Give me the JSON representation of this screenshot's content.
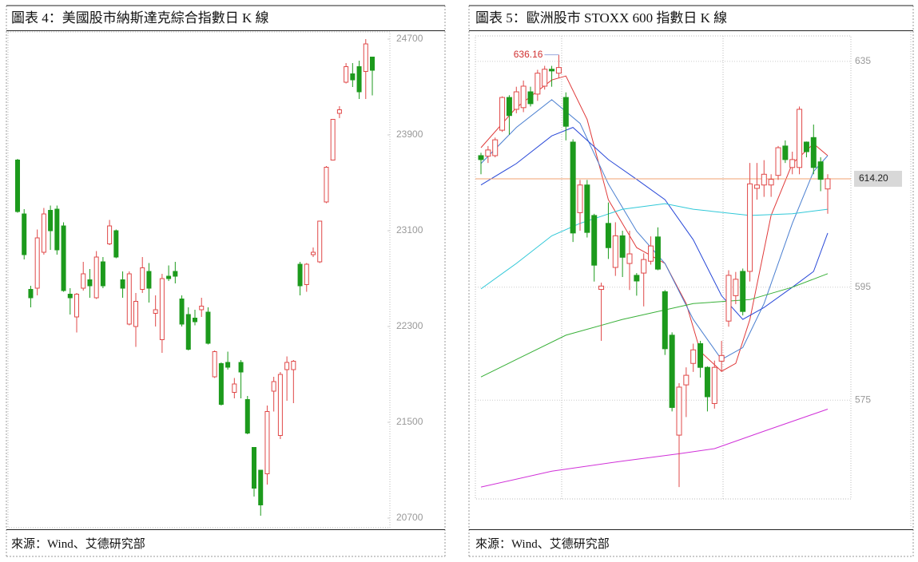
{
  "chart_data": [
    {
      "type": "candlestick",
      "title": "圖表 4：美國股市納斯達克綜合指數日 K 線",
      "source": "來源：Wind、艾德研究部",
      "up_color": "#e04848",
      "down_color": "#1c9a1c",
      "ylim": [
        20620,
        24760
      ],
      "yticks": [
        20700,
        21500,
        22300,
        23100,
        23900,
        24700
      ],
      "grid": false,
      "open": [
        23690,
        23240,
        22610,
        22620,
        22920,
        23270,
        23280,
        23140,
        22570,
        22380,
        22620,
        22690,
        22540,
        22840,
        22990,
        23100,
        22690,
        22320,
        22300,
        22610,
        22760,
        22410,
        22190,
        22720,
        22760,
        22530,
        22400,
        22370,
        22440,
        22420,
        21880,
        21990,
        22000,
        21750,
        22000,
        21690,
        21290,
        21100,
        21070,
        21760,
        21390,
        21940,
        21940,
        22820,
        22650,
        22900,
        22840,
        23340,
        23690,
        24080,
        24340,
        24410,
        24470,
        24430,
        24550
      ],
      "high": [
        23700,
        23280,
        22640,
        23110,
        23290,
        23310,
        23310,
        23170,
        22620,
        22580,
        22840,
        22780,
        22930,
        22880,
        23190,
        23110,
        22760,
        22760,
        22580,
        22880,
        22830,
        22560,
        22740,
        22810,
        22840,
        22560,
        22460,
        22440,
        22540,
        22460,
        22100,
        22000,
        22090,
        21870,
        22020,
        21720,
        21290,
        21100,
        21640,
        21880,
        21920,
        22050,
        22020,
        22840,
        22830,
        22960,
        23180,
        23640,
        24030,
        24140,
        24500,
        24500,
        24520,
        24700,
        24550
      ],
      "low": [
        23250,
        22860,
        22460,
        22560,
        22900,
        22940,
        22900,
        22590,
        22400,
        22250,
        22600,
        22540,
        22530,
        22620,
        22980,
        22870,
        22540,
        22310,
        22130,
        22580,
        22500,
        22300,
        22080,
        22680,
        22660,
        22300,
        22100,
        22310,
        22380,
        22150,
        21870,
        21640,
        21940,
        21700,
        21700,
        21400,
        20880,
        20720,
        20980,
        21590,
        21360,
        21680,
        21660,
        22560,
        22590,
        22880,
        22830,
        23330,
        23690,
        24040,
        24330,
        24300,
        24200,
        24200,
        24230
      ],
      "close": [
        23260,
        22900,
        22540,
        23040,
        23240,
        23100,
        22940,
        22600,
        22540,
        22570,
        22740,
        22640,
        22880,
        22640,
        23140,
        22880,
        22620,
        22740,
        22510,
        22790,
        22620,
        22440,
        22700,
        22700,
        22720,
        22320,
        22110,
        22340,
        22470,
        22160,
        22090,
        21650,
        21960,
        21820,
        21920,
        21410,
        20950,
        20810,
        21590,
        21840,
        21900,
        22000,
        22010,
        22640,
        22820,
        22920,
        23180,
        23630,
        24030,
        24110,
        24470,
        24360,
        24260,
        24660,
        24440
      ]
    },
    {
      "type": "candlestick",
      "title": "圖表 5：歐洲股市 STOXX 600 指數日 K 線",
      "source": "來源：Wind、艾德研究部",
      "up_color": "#e04848",
      "down_color": "#1c9a1c",
      "ylim": [
        557.5,
        639.5
      ],
      "yticks": [
        575,
        595,
        635
      ],
      "grid": true,
      "open": [
        618.3,
        618.2,
        618.3,
        622.8,
        628.6,
        626.5,
        626.8,
        629.6,
        629.2,
        630.6,
        633.6,
        632.9,
        628.6,
        620.7,
        608.2,
        613.1,
        607.7,
        594.6,
        606.3,
        598.5,
        604.1,
        599.2,
        597.1,
        597.5,
        599.6,
        603.9,
        594.2,
        586.5,
        568.8,
        577.7,
        581.5,
        585.0,
        580.8,
        574.4,
        581.9,
        589.0,
        593.5,
        597.8,
        597.8,
        612.5,
        613.1,
        613.1,
        614.8,
        620.0,
        616.2,
        616.2,
        620.7,
        621.5,
        617.2,
        612.4
      ],
      "high": [
        618.8,
        620,
        621.5,
        628.8,
        629,
        630.5,
        631.6,
        630.5,
        633.5,
        634.2,
        634.2,
        636.16,
        629.5,
        621.2,
        614,
        614,
        608,
        595.8,
        610,
        606.5,
        605,
        605,
        597.5,
        601,
        604,
        605.6,
        594.5,
        587,
        578,
        580.8,
        585,
        585.5,
        581,
        582,
        585.5,
        598,
        597.7,
        598.3,
        617,
        617,
        617.5,
        615,
        620,
        621,
        619,
        627,
        620.8,
        623.8,
        618,
        615
      ],
      "low": [
        615,
        617,
        618,
        622.5,
        622,
        625.8,
        626,
        627,
        628,
        630,
        630.5,
        632,
        621,
        603,
        605,
        603.8,
        596,
        585.5,
        600,
        597,
        596.8,
        594.5,
        593.5,
        591.6,
        599,
        598,
        583,
        573,
        559.6,
        572,
        580,
        579,
        573,
        573.5,
        580,
        588,
        592,
        590,
        596,
        610.5,
        611,
        611,
        614,
        617,
        615,
        615,
        618,
        615,
        612,
        608
      ],
      "close": [
        617.6,
        619.3,
        621.1,
        628.6,
        625.4,
        629.6,
        630.6,
        627.5,
        632.9,
        633.6,
        633.3,
        633.9,
        623.5,
        604.6,
        613.1,
        604.7,
        598.9,
        595.2,
        602.0,
        604.1,
        600.3,
        600.9,
        596.1,
        599.9,
        602.3,
        598.2,
        584.1,
        573.7,
        577.3,
        579.4,
        583.9,
        580.8,
        575.6,
        580.8,
        582.9,
        597.1,
        596.4,
        590.7,
        613.3,
        613.1,
        615.0,
        614.1,
        619.7,
        617.6,
        617.6,
        626.5,
        619.0,
        616.2,
        614.1,
        614.2
      ],
      "max_label": {
        "value": 636.16,
        "label": "636.16",
        "color": "#d03030"
      },
      "last_price": {
        "value": 614.2,
        "label": "614.20",
        "color": "#f0a070"
      },
      "moving_averages": [
        {
          "color": "#e03a3a",
          "x": [
            0,
            5,
            10,
            12,
            15,
            18,
            22,
            26,
            29,
            31,
            34,
            36,
            38,
            41,
            44,
            47,
            49
          ],
          "values": [
            619.7,
            626.8,
            631.7,
            632.4,
            624.7,
            610.5,
            602,
            599.2,
            592.1,
            583.6,
            580.1,
            581.5,
            589.3,
            607.7,
            616.9,
            620.4,
            618.3
          ]
        },
        {
          "color": "#4a7fd0",
          "x": [
            0,
            5,
            10,
            14,
            18,
            22,
            26,
            30,
            34,
            37,
            40,
            44,
            47,
            49
          ],
          "values": [
            616.9,
            623.3,
            628.2,
            624,
            613.3,
            604.9,
            599.2,
            589.3,
            582.2,
            584.3,
            592.1,
            606.3,
            615.5,
            618.3
          ]
        },
        {
          "color": "#2848d8",
          "x": [
            0,
            5,
            10,
            13,
            18,
            22,
            26,
            30,
            34,
            37,
            40,
            44,
            47,
            49
          ],
          "values": [
            613.1,
            616.9,
            621.8,
            623.3,
            617.6,
            614.1,
            610.5,
            603.4,
            593.5,
            589.3,
            591.4,
            595,
            597.8,
            604.6
          ]
        },
        {
          "color": "#30c8d8",
          "x": [
            0,
            5,
            10,
            14,
            20,
            26,
            30,
            38,
            44,
            49
          ],
          "values": [
            594.7,
            599.2,
            604.1,
            606.3,
            608.8,
            609.8,
            608.8,
            607.7,
            608,
            608.8
          ]
        },
        {
          "color": "#38b038",
          "x": [
            0,
            5,
            12,
            20,
            30,
            38,
            44,
            49
          ],
          "values": [
            579.1,
            582.2,
            586.5,
            589.3,
            592.1,
            592.8,
            595,
            597.4
          ]
        },
        {
          "color": "#d030d8",
          "x": [
            0,
            10,
            20,
            28,
            33,
            40,
            49
          ],
          "values": [
            559.6,
            562.4,
            564.2,
            565.5,
            566.4,
            569.5,
            573.4
          ]
        }
      ]
    }
  ]
}
